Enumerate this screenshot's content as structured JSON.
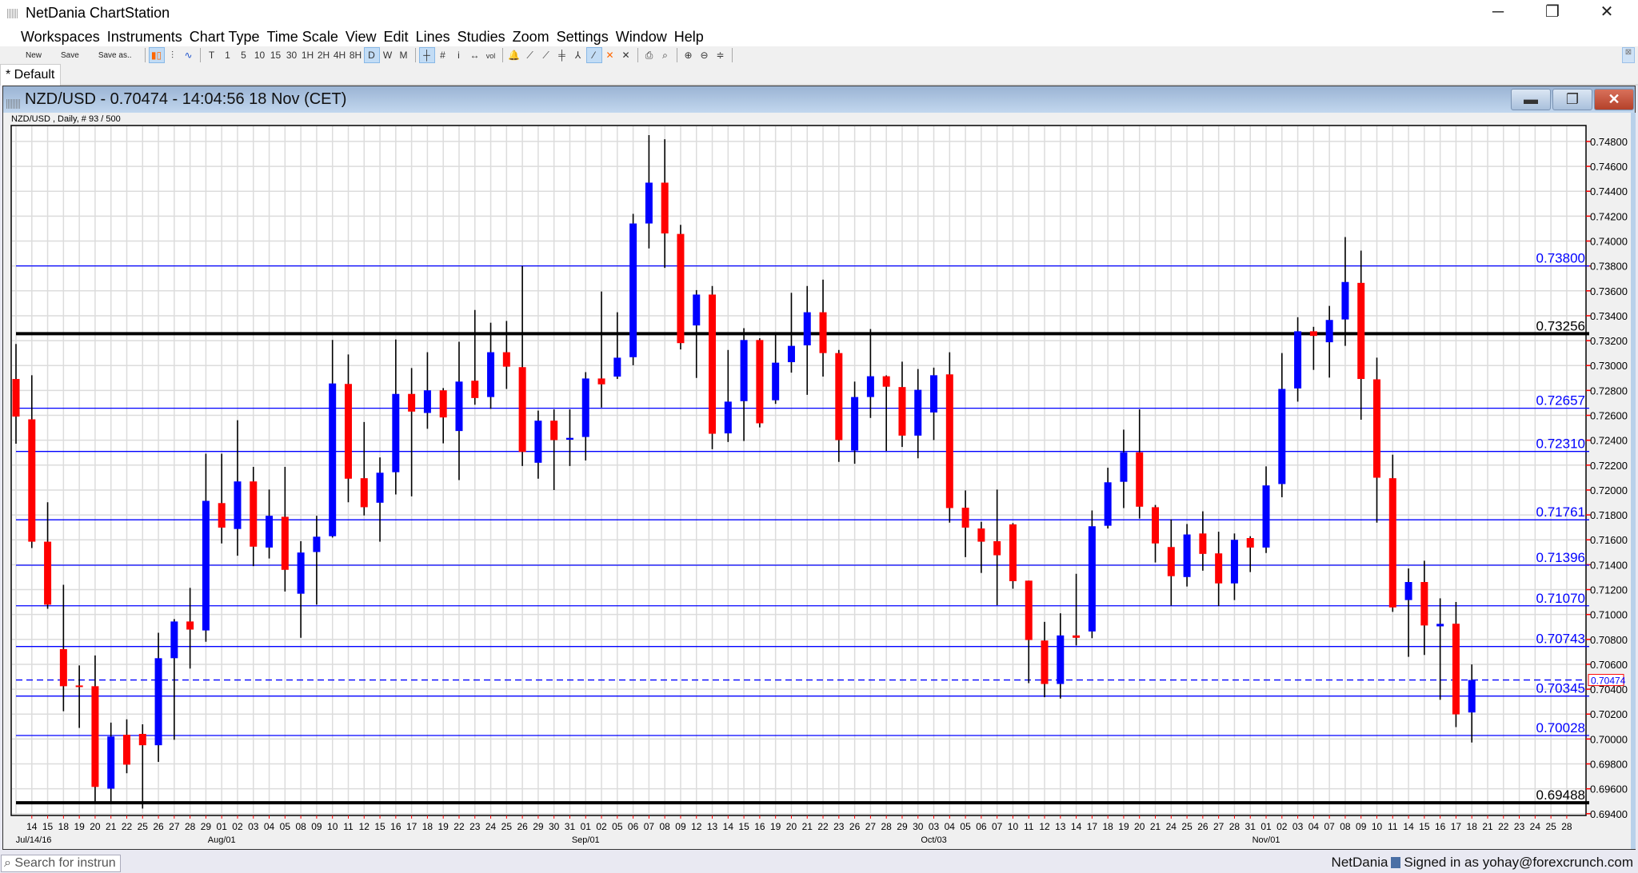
{
  "window": {
    "title": "NetDania ChartStation",
    "controls": [
      "minimize",
      "restore",
      "close"
    ]
  },
  "menu": [
    "Workspaces",
    "Instruments",
    "Chart Type",
    "Time Scale",
    "View",
    "Edit",
    "Lines",
    "Studies",
    "Zoom",
    "Settings",
    "Window",
    "Help"
  ],
  "toolbar": {
    "file": [
      "New",
      "Save",
      "Save as.."
    ],
    "chart_types": [
      {
        "icon": "candlestick-icon",
        "glyph": "▮▯",
        "active": true
      },
      {
        "icon": "bar-chart-icon",
        "glyph": "⫶",
        "active": false
      },
      {
        "icon": "line-chart-icon",
        "glyph": "∿",
        "active": false
      }
    ],
    "timescales": [
      "T",
      "1",
      "5",
      "10",
      "15",
      "30",
      "1H",
      "2H",
      "4H",
      "8H",
      "D",
      "W",
      "M"
    ],
    "active_timescale": "D",
    "tools": [
      {
        "icon": "crosshair-icon",
        "glyph": "┼",
        "active": true
      },
      {
        "icon": "grid-icon",
        "glyph": "#",
        "active": false
      },
      {
        "icon": "info-icon",
        "glyph": "i",
        "active": false
      },
      {
        "icon": "scroll-icon",
        "glyph": "↔",
        "active": false
      },
      {
        "icon": "volume-icon",
        "glyph": "vol",
        "active": false
      }
    ],
    "drawing": [
      {
        "icon": "alert-bell-icon",
        "glyph": "🔔",
        "active": false
      },
      {
        "icon": "trendline-icon",
        "glyph": "⟋",
        "active": false
      },
      {
        "icon": "ray-line-icon",
        "glyph": "⟋",
        "active": false
      },
      {
        "icon": "fibonacci-icon",
        "glyph": "╪",
        "active": false
      },
      {
        "icon": "channel-icon",
        "glyph": "⅄",
        "active": false
      },
      {
        "icon": "draw-line-icon",
        "glyph": "⁄",
        "active": true
      },
      {
        "icon": "delete-icon",
        "glyph": "✕",
        "active": false
      },
      {
        "icon": "delete-all-icon",
        "glyph": "✕",
        "active": false
      }
    ],
    "print": [
      {
        "icon": "print-icon",
        "glyph": "⎙"
      },
      {
        "icon": "print-preview-icon",
        "glyph": "⌕"
      }
    ],
    "zoom": [
      {
        "icon": "zoom-in-icon",
        "glyph": "⊕"
      },
      {
        "icon": "zoom-out-icon",
        "glyph": "⊖"
      },
      {
        "icon": "zoom-fit-icon",
        "glyph": "≑"
      }
    ]
  },
  "tabs": [
    {
      "label": "* Default",
      "active": true
    }
  ],
  "chart_window": {
    "title": "NZD/USD - 0.70474 - 14:04:56  18 Nov (CET)",
    "subtitle": "NZD/USD , Daily, # 93 / 500"
  },
  "colors": {
    "bull": "#0000ff",
    "bear": "#ff0000",
    "study_line": "#0000ff",
    "grid": "#dcdcdc",
    "tick": "#ff0000"
  },
  "chart_data": {
    "type": "candlestick",
    "symbol": "NZD/USD",
    "ylim": [
      0.69386,
      0.74928
    ],
    "grid": true,
    "y_ticks": [
      "0.74800",
      "0.74600",
      "0.74400",
      "0.74200",
      "0.74000",
      "0.73800",
      "0.73600",
      "0.73400",
      "0.73200",
      "0.73000",
      "0.72800",
      "0.72600",
      "0.72400",
      "0.72200",
      "0.72000",
      "0.71800",
      "0.71600",
      "0.71400",
      "0.71200",
      "0.71000",
      "0.70800",
      "0.70600",
      "0.70400",
      "0.70200",
      "0.70000",
      "0.69800",
      "0.69600",
      "0.69400"
    ],
    "x_categories": [
      "",
      "14",
      "15",
      "18",
      "19",
      "20",
      "21",
      "22",
      "25",
      "26",
      "27",
      "28",
      "29",
      "01",
      "02",
      "03",
      "04",
      "05",
      "08",
      "09",
      "10",
      "11",
      "12",
      "15",
      "16",
      "17",
      "18",
      "19",
      "22",
      "23",
      "24",
      "25",
      "26",
      "29",
      "30",
      "31",
      "01",
      "02",
      "05",
      "06",
      "07",
      "08",
      "09",
      "12",
      "13",
      "14",
      "15",
      "16",
      "19",
      "20",
      "21",
      "22",
      "23",
      "26",
      "27",
      "28",
      "29",
      "30",
      "03",
      "04",
      "05",
      "06",
      "07",
      "10",
      "11",
      "12",
      "13",
      "14",
      "17",
      "18",
      "19",
      "20",
      "21",
      "24",
      "25",
      "26",
      "27",
      "28",
      "31",
      "01",
      "02",
      "03",
      "04",
      "07",
      "08",
      "09",
      "10",
      "11",
      "14",
      "15",
      "16",
      "17",
      "18",
      "21",
      "22",
      "23",
      "24",
      "25",
      "28"
    ],
    "month_labels": [
      {
        "label": "Jul/14/16",
        "index": 1,
        "align": "start"
      },
      {
        "label": "Aug/01",
        "index": 13,
        "align": "middle"
      },
      {
        "label": "Sep/01",
        "index": 36,
        "align": "middle"
      },
      {
        "label": "Oct/03",
        "index": 58,
        "align": "middle"
      },
      {
        "label": "Nov/01",
        "index": 79,
        "align": "middle"
      }
    ],
    "ohlc_fields": [
      "open",
      "high",
      "low",
      "close"
    ],
    "ohlc": [
      [
        0.72892,
        0.73173,
        0.72372,
        0.7259
      ],
      [
        0.72568,
        0.72922,
        0.71534,
        0.71585
      ],
      [
        0.71585,
        0.71902,
        0.71046,
        0.71079
      ],
      [
        0.70722,
        0.71239,
        0.70223,
        0.70424
      ],
      [
        0.7043,
        0.70591,
        0.70089,
        0.70424
      ],
      [
        0.70424,
        0.70671,
        0.69488,
        0.69615
      ],
      [
        0.69601,
        0.70132,
        0.69488,
        0.7002
      ],
      [
        0.70034,
        0.70158,
        0.69725,
        0.69794
      ],
      [
        0.70041,
        0.70118,
        0.69441,
        0.6995
      ],
      [
        0.6995,
        0.70853,
        0.69816,
        0.70649
      ],
      [
        0.70649,
        0.70963,
        0.69994,
        0.70944
      ],
      [
        0.70944,
        0.71214,
        0.70566,
        0.70879
      ],
      [
        0.70872,
        0.72292,
        0.70781,
        0.71913
      ],
      [
        0.71895,
        0.72292,
        0.71571,
        0.71698
      ],
      [
        0.71687,
        0.72561,
        0.71472,
        0.72069
      ],
      [
        0.72069,
        0.72186,
        0.71389,
        0.71545
      ],
      [
        0.71538,
        0.72004,
        0.7145,
        0.71793
      ],
      [
        0.71785,
        0.72186,
        0.71185,
        0.71359
      ],
      [
        0.71167,
        0.71589,
        0.70813,
        0.71498
      ],
      [
        0.71502,
        0.71793,
        0.71079,
        0.71625
      ],
      [
        0.71629,
        0.73205,
        0.71618,
        0.72856
      ],
      [
        0.72852,
        0.73089,
        0.71902,
        0.72091
      ],
      [
        0.72095,
        0.72546,
        0.71796,
        0.71862
      ],
      [
        0.71898,
        0.72262,
        0.71585,
        0.72139
      ],
      [
        0.72143,
        0.73209,
        0.71964,
        0.72772
      ],
      [
        0.72772,
        0.7298,
        0.71949,
        0.7263
      ],
      [
        0.72619,
        0.73107,
        0.72492,
        0.72801
      ],
      [
        0.72801,
        0.72819,
        0.72375,
        0.72583
      ],
      [
        0.72474,
        0.73191,
        0.7208,
        0.72871
      ],
      [
        0.72878,
        0.73446,
        0.72685,
        0.72739
      ],
      [
        0.72747,
        0.73344,
        0.72652,
        0.73107
      ],
      [
        0.73107,
        0.73358,
        0.72812,
        0.72991
      ],
      [
        0.72987,
        0.73799,
        0.72193,
        0.72306
      ],
      [
        0.72219,
        0.72638,
        0.72091,
        0.72557
      ],
      [
        0.72557,
        0.72648,
        0.72,
        0.72401
      ],
      [
        0.72404,
        0.72648,
        0.72193,
        0.72419
      ],
      [
        0.72426,
        0.72947,
        0.72237,
        0.72896
      ],
      [
        0.72896,
        0.73595,
        0.72663,
        0.72849
      ],
      [
        0.72911,
        0.73428,
        0.72892,
        0.73063
      ],
      [
        0.73067,
        0.74218,
        0.73002,
        0.74141
      ],
      [
        0.74141,
        0.74851,
        0.73941,
        0.74469
      ],
      [
        0.74469,
        0.74818,
        0.73784,
        0.74061
      ],
      [
        0.74057,
        0.7413,
        0.73129,
        0.7318
      ],
      [
        0.73322,
        0.73606,
        0.729,
        0.7357
      ],
      [
        0.7357,
        0.73639,
        0.72328,
        0.72452
      ],
      [
        0.72455,
        0.73125,
        0.72386,
        0.7271
      ],
      [
        0.72714,
        0.733,
        0.72394,
        0.73205
      ],
      [
        0.73205,
        0.73219,
        0.72503,
        0.72536
      ],
      [
        0.72721,
        0.73256,
        0.72692,
        0.73023
      ],
      [
        0.73027,
        0.73584,
        0.72943,
        0.73158
      ],
      [
        0.73162,
        0.73639,
        0.72765,
        0.73428
      ],
      [
        0.73428,
        0.7369,
        0.72911,
        0.731
      ],
      [
        0.731,
        0.73125,
        0.72226,
        0.72401
      ],
      [
        0.72317,
        0.72871,
        0.72211,
        0.72747
      ],
      [
        0.72747,
        0.73293,
        0.72579,
        0.72914
      ],
      [
        0.72914,
        0.72921,
        0.72313,
        0.7283
      ],
      [
        0.72827,
        0.73031,
        0.72346,
        0.72437
      ],
      [
        0.72437,
        0.72972,
        0.72255,
        0.72805
      ],
      [
        0.72623,
        0.72983,
        0.72401,
        0.72922
      ],
      [
        0.72929,
        0.73107,
        0.71738,
        0.71855
      ],
      [
        0.71858,
        0.71997,
        0.71461,
        0.71698
      ],
      [
        0.71691,
        0.71745,
        0.71334,
        0.71585
      ],
      [
        0.71589,
        0.72004,
        0.71075,
        0.71476
      ],
      [
        0.71724,
        0.71734,
        0.71207,
        0.71268
      ],
      [
        0.71272,
        0.71272,
        0.70449,
        0.70795
      ],
      [
        0.70791,
        0.70941,
        0.70336,
        0.70442
      ],
      [
        0.70442,
        0.7101,
        0.70325,
        0.70832
      ],
      [
        0.70832,
        0.71327,
        0.70751,
        0.70813
      ],
      [
        0.70864,
        0.71836,
        0.7081,
        0.71709
      ],
      [
        0.71713,
        0.72179,
        0.71691,
        0.72062
      ],
      [
        0.72066,
        0.72485,
        0.71855,
        0.72303
      ],
      [
        0.72303,
        0.72648,
        0.71771,
        0.71866
      ],
      [
        0.71862,
        0.7188,
        0.71418,
        0.71571
      ],
      [
        0.71542,
        0.71764,
        0.71072,
        0.71308
      ],
      [
        0.71301,
        0.71727,
        0.71225,
        0.71643
      ],
      [
        0.71651,
        0.71829,
        0.71352,
        0.71487
      ],
      [
        0.71491,
        0.71665,
        0.71068,
        0.7125
      ],
      [
        0.7125,
        0.71651,
        0.71116,
        0.716
      ],
      [
        0.71614,
        0.71629,
        0.71341,
        0.71538
      ],
      [
        0.71538,
        0.7219,
        0.71494,
        0.72037
      ],
      [
        0.72048,
        0.731,
        0.71942,
        0.72812
      ],
      [
        0.72816,
        0.73388,
        0.7271,
        0.73275
      ],
      [
        0.73275,
        0.73311,
        0.72965,
        0.73238
      ],
      [
        0.73187,
        0.73479,
        0.72903,
        0.73366
      ],
      [
        0.7337,
        0.74032,
        0.73158,
        0.73671
      ],
      [
        0.73664,
        0.73923,
        0.72565,
        0.72892
      ],
      [
        0.72889,
        0.73063,
        0.71738,
        0.72099
      ],
      [
        0.72095,
        0.72284,
        0.71021,
        0.71057
      ],
      [
        0.71116,
        0.7137,
        0.7066,
        0.71261
      ],
      [
        0.71261,
        0.71432,
        0.70675,
        0.70912
      ],
      [
        0.70905,
        0.7113,
        0.70315,
        0.70925
      ],
      [
        0.70926,
        0.71101,
        0.70096,
        0.70198
      ],
      [
        0.70213,
        0.70599,
        0.69972,
        0.70474
      ]
    ],
    "horizontal_lines": [
      {
        "value": "0.73800",
        "style": "thin",
        "color": "#0000ff"
      },
      {
        "value": "0.73256",
        "style": "thick",
        "color": "#000000"
      },
      {
        "value": "0.72657",
        "style": "thin",
        "color": "#0000ff"
      },
      {
        "value": "0.72310",
        "style": "thin",
        "color": "#0000ff"
      },
      {
        "value": "0.71761",
        "style": "thin",
        "color": "#0000ff"
      },
      {
        "value": "0.71396",
        "style": "thin",
        "color": "#0000ff"
      },
      {
        "value": "0.71070",
        "style": "thin",
        "color": "#0000ff"
      },
      {
        "value": "0.70743",
        "style": "thin",
        "color": "#0000ff"
      },
      {
        "value": "0.70345",
        "style": "thin",
        "color": "#0000ff"
      },
      {
        "value": "0.70028",
        "style": "thin",
        "color": "#0000ff"
      },
      {
        "value": "0.69488",
        "style": "thick",
        "color": "#000000"
      }
    ],
    "current_price": "0.70474"
  },
  "bottom": {
    "search_placeholder": "Search for instrun",
    "brand": "NetDania",
    "signed_in": "Signed in as yohay@forexcrunch.com"
  }
}
